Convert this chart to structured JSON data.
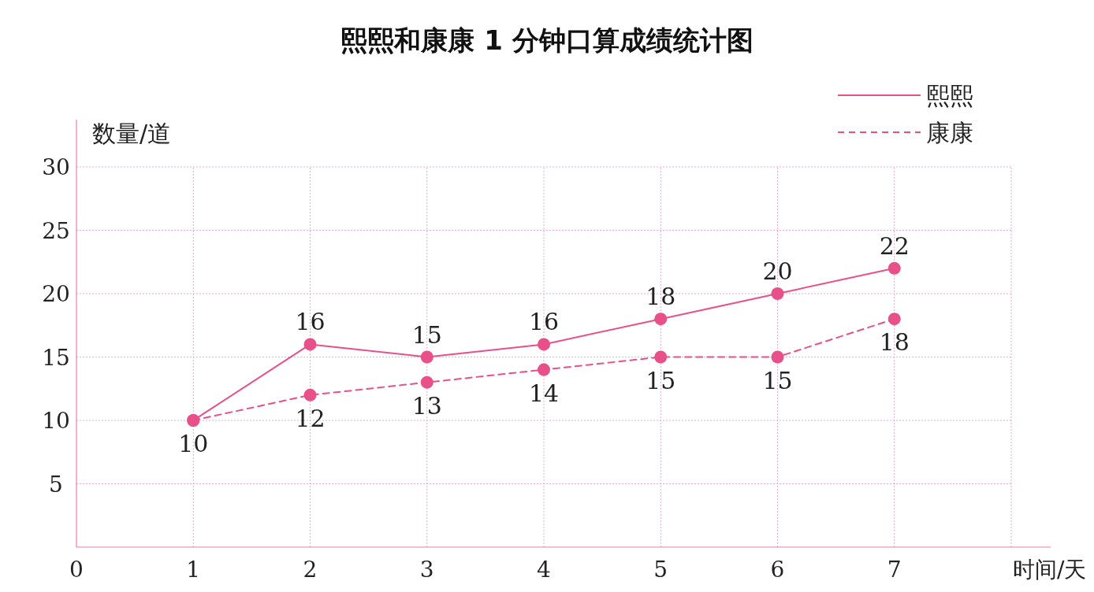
{
  "chart_data": {
    "type": "line",
    "title": "熙熙和康康 1 分钟口算成绩统计图",
    "xlabel": "时间/天",
    "ylabel": "数量/道",
    "x": [
      1,
      2,
      3,
      4,
      5,
      6,
      7
    ],
    "series": [
      {
        "name": "熙熙",
        "color": "#e8508a",
        "line_style": "solid",
        "values": [
          10,
          16,
          15,
          16,
          18,
          20,
          22
        ],
        "value_labels": [
          null,
          "16",
          "15",
          "16",
          "18",
          "20",
          "22"
        ]
      },
      {
        "name": "康康",
        "color": "#e8508a",
        "line_style": "dashed",
        "values": [
          10,
          12,
          13,
          14,
          15,
          15,
          18
        ],
        "value_labels": [
          "10",
          "12",
          "13",
          "14",
          "15",
          "15",
          "18"
        ]
      }
    ],
    "xlim": [
      0,
      8
    ],
    "xticks": [
      0,
      1,
      2,
      3,
      4,
      5,
      6,
      7,
      {
        "value": 8,
        "label": null
      }
    ],
    "ylim": [
      0,
      30
    ],
    "yticks": [
      {
        "value": 0,
        "label": null
      },
      5,
      10,
      15,
      20,
      25,
      30
    ],
    "grid": true,
    "legend": "top right",
    "marker": "circle"
  }
}
